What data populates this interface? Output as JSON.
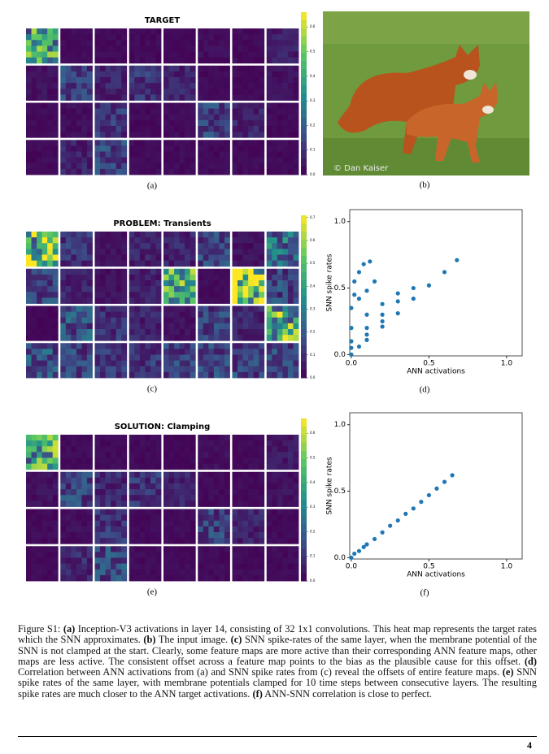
{
  "figures": {
    "a": {
      "type": "heatmap",
      "title": "TARGET",
      "label": "(a)",
      "colorbar": {
        "ticks": [
          {
            "value": 0,
            "label": "0.0"
          },
          0.1,
          0.2,
          0.3,
          0.4,
          0.5,
          0.6
        ],
        "lim": [
          0,
          0.66
        ]
      }
    },
    "b": {
      "type": "image",
      "label": "(b)",
      "credit": "© Dan Kaiser"
    },
    "c": {
      "type": "heatmap",
      "title": "PROBLEM: Transients",
      "label": "(c)",
      "colorbar": {
        "ticks": [
          {
            "value": 0,
            "label": "0.0"
          },
          0.1,
          0.2,
          0.3,
          0.4,
          0.5,
          0.6,
          0.7
        ],
        "lim": [
          0,
          0.71
        ]
      }
    },
    "d": {
      "type": "scatter",
      "label": "(d)",
      "xlabel": "ANN activations",
      "ylabel": "SNN spike rates",
      "color": "#1f77b4",
      "xlim": [
        -0.01,
        1.1
      ],
      "ylim": [
        -0.01,
        1.09
      ],
      "xticks": [
        {
          "value": 0,
          "label": "0.0"
        },
        0.5,
        {
          "value": 1,
          "label": "1.0"
        }
      ],
      "yticks": [
        {
          "value": 0,
          "label": "0.0"
        },
        0.5,
        {
          "value": 1,
          "label": "1.0"
        }
      ],
      "x": [
        0,
        0.05,
        0.1,
        0.2,
        0.3,
        0.4,
        0.5,
        0.6,
        0.68,
        0,
        0.1,
        0.2,
        0.3,
        0.4,
        0,
        0.1,
        0.2,
        0.3,
        0,
        0.05,
        0.1,
        0.15,
        0.02,
        0.05,
        0.08,
        0.12,
        0,
        0.1,
        0.2,
        0.02
      ],
      "y": [
        0,
        0.06,
        0.11,
        0.21,
        0.31,
        0.42,
        0.52,
        0.62,
        0.71,
        0.1,
        0.2,
        0.3,
        0.4,
        0.5,
        0.2,
        0.3,
        0.38,
        0.46,
        0.35,
        0.42,
        0.48,
        0.55,
        0.55,
        0.62,
        0.68,
        0.7,
        0.05,
        0.15,
        0.25,
        0.45
      ]
    },
    "e": {
      "type": "heatmap",
      "title": "SOLUTION: Clamping",
      "label": "(e)",
      "colorbar": {
        "ticks": [
          {
            "value": 0,
            "label": "0.0"
          },
          0.1,
          0.2,
          0.3,
          0.4,
          0.5,
          0.6
        ],
        "lim": [
          0,
          0.66
        ]
      }
    },
    "f": {
      "type": "scatter",
      "label": "(f)",
      "xlabel": "ANN activations",
      "ylabel": "SNN spike rates",
      "color": "#1f77b4",
      "xlim": [
        -0.01,
        1.1
      ],
      "ylim": [
        -0.01,
        1.09
      ],
      "xticks": [
        {
          "value": 0,
          "label": "0.0"
        },
        0.5,
        {
          "value": 1,
          "label": "1.0"
        }
      ],
      "yticks": [
        {
          "value": 0,
          "label": "0.0"
        },
        0.5,
        {
          "value": 1,
          "label": "1.0"
        }
      ],
      "x": [
        0,
        0.02,
        0.05,
        0.08,
        0.1,
        0.15,
        0.2,
        0.25,
        0.3,
        0.35,
        0.4,
        0.45,
        0.5,
        0.55,
        0.6,
        0.65
      ],
      "y": [
        0,
        0.03,
        0.05,
        0.08,
        0.1,
        0.14,
        0.19,
        0.24,
        0.28,
        0.33,
        0.37,
        0.42,
        0.47,
        0.52,
        0.57,
        0.62
      ]
    }
  },
  "caption": {
    "segments": [
      {
        "text": "Figure S1: ",
        "bold": false
      },
      {
        "text": "(a)",
        "bold": true
      },
      {
        "text": " Inception-V3 activations in layer 14, consisting of 32 1x1 convolutions. This heat map represents the target rates which the SNN approximates. ",
        "bold": false
      },
      {
        "text": "(b)",
        "bold": true
      },
      {
        "text": " The input image. ",
        "bold": false
      },
      {
        "text": "(c)",
        "bold": true
      },
      {
        "text": " SNN spike-rates of the same layer, when the membrane potential of the SNN is not clamped at the start. Clearly, some feature maps are more active than their corresponding ANN feature maps, other maps are less active. The consistent offset across a feature map points to the bias as the plausible cause for this offset. ",
        "bold": false
      },
      {
        "text": "(d)",
        "bold": true
      },
      {
        "text": " Correlation between ANN activations from (a) and SNN spike rates from (c) reveal the offsets of entire feature maps. ",
        "bold": false
      },
      {
        "text": "(e)",
        "bold": true
      },
      {
        "text": " SNN spike rates of the same layer, with membrane potentials clamped for 10 time steps between consecutive layers. The resulting spike rates are much closer to the ANN target activations. ",
        "bold": false
      },
      {
        "text": "(f)",
        "bold": true
      },
      {
        "text": " ANN-SNN correlation is close to perfect.",
        "bold": false
      }
    ]
  },
  "page_number": "4"
}
